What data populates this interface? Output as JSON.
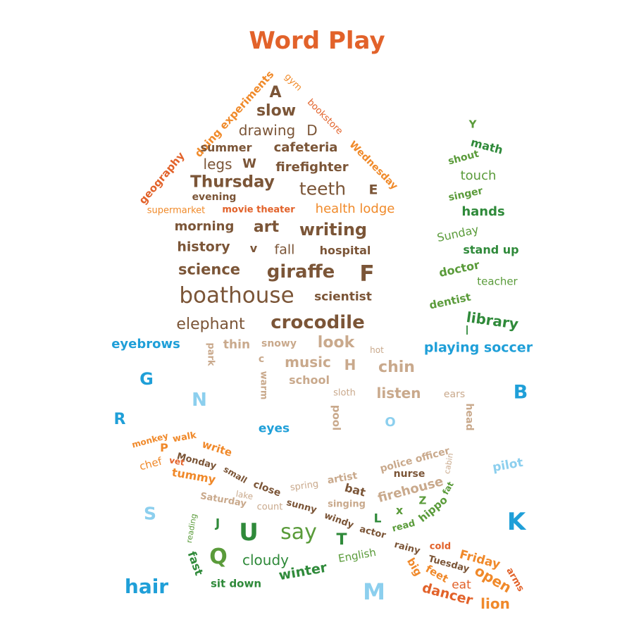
{
  "title": "Word Play",
  "colors": {
    "title": "#e2622a",
    "house_dark": "#7b5537",
    "house_orange": "#f08a2a",
    "house_red": "#e2622a",
    "blue": "#1f9fd8",
    "light_blue": "#8ccfee",
    "tan": "#c9a98c",
    "green_dark": "#2f8a3a",
    "green": "#5a9b3a",
    "orange": "#f0892a"
  },
  "house": {
    "roof_left": [
      "geography",
      "doing experiments"
    ],
    "roof_right": [
      "gym",
      "bookstore",
      "Wednesday"
    ],
    "words": [
      "A",
      "slow",
      "drawing",
      "D",
      "summer",
      "cafeteria",
      "legs",
      "W",
      "firefighter",
      "Thursday",
      "evening",
      "teeth",
      "E",
      "supermarket",
      "movie theater",
      "health lodge",
      "morning",
      "art",
      "writing",
      "history",
      "v",
      "fall",
      "hospital",
      "science",
      "giraffe",
      "F",
      "boathouse",
      "scientist",
      "elephant",
      "crocodile"
    ]
  },
  "tree": [
    "Y",
    "math",
    "shout",
    "touch",
    "singer",
    "hands",
    "Sunday",
    "stand up",
    "doctor",
    "teacher",
    "dentist",
    "library",
    "I"
  ],
  "middle": [
    "eyebrows",
    "playing soccer",
    "park",
    "thin",
    "snowy",
    "look",
    "hot",
    "c",
    "music",
    "H",
    "chin",
    "warm",
    "school",
    "sloth",
    "listen",
    "ears",
    "head",
    "pool",
    "eyes",
    "O"
  ],
  "loose_letters": [
    "G",
    "N",
    "R",
    "B",
    "S",
    "K",
    "M"
  ],
  "ribbons": [
    "monkey",
    "walk",
    "write",
    "P",
    "chef",
    "vet",
    "Monday",
    "tummy",
    "small",
    "police officer",
    "cabin",
    "spring",
    "artist",
    "nurse",
    "close",
    "lake",
    "bat",
    "Saturday",
    "count",
    "sunny",
    "firehouse",
    "fat",
    "singing",
    "windy",
    "L",
    "x",
    "Z",
    "hippo",
    "reading",
    "J",
    "U",
    "say",
    "actor",
    "read",
    "pilot",
    "Q",
    "T",
    "rainy",
    "cloudy",
    "English",
    "cold",
    "Friday",
    "fast",
    "winter",
    "Tuesday",
    "arms",
    "big",
    "feet",
    "eat",
    "open",
    "sit down",
    "dancer",
    "hair",
    "lion"
  ]
}
